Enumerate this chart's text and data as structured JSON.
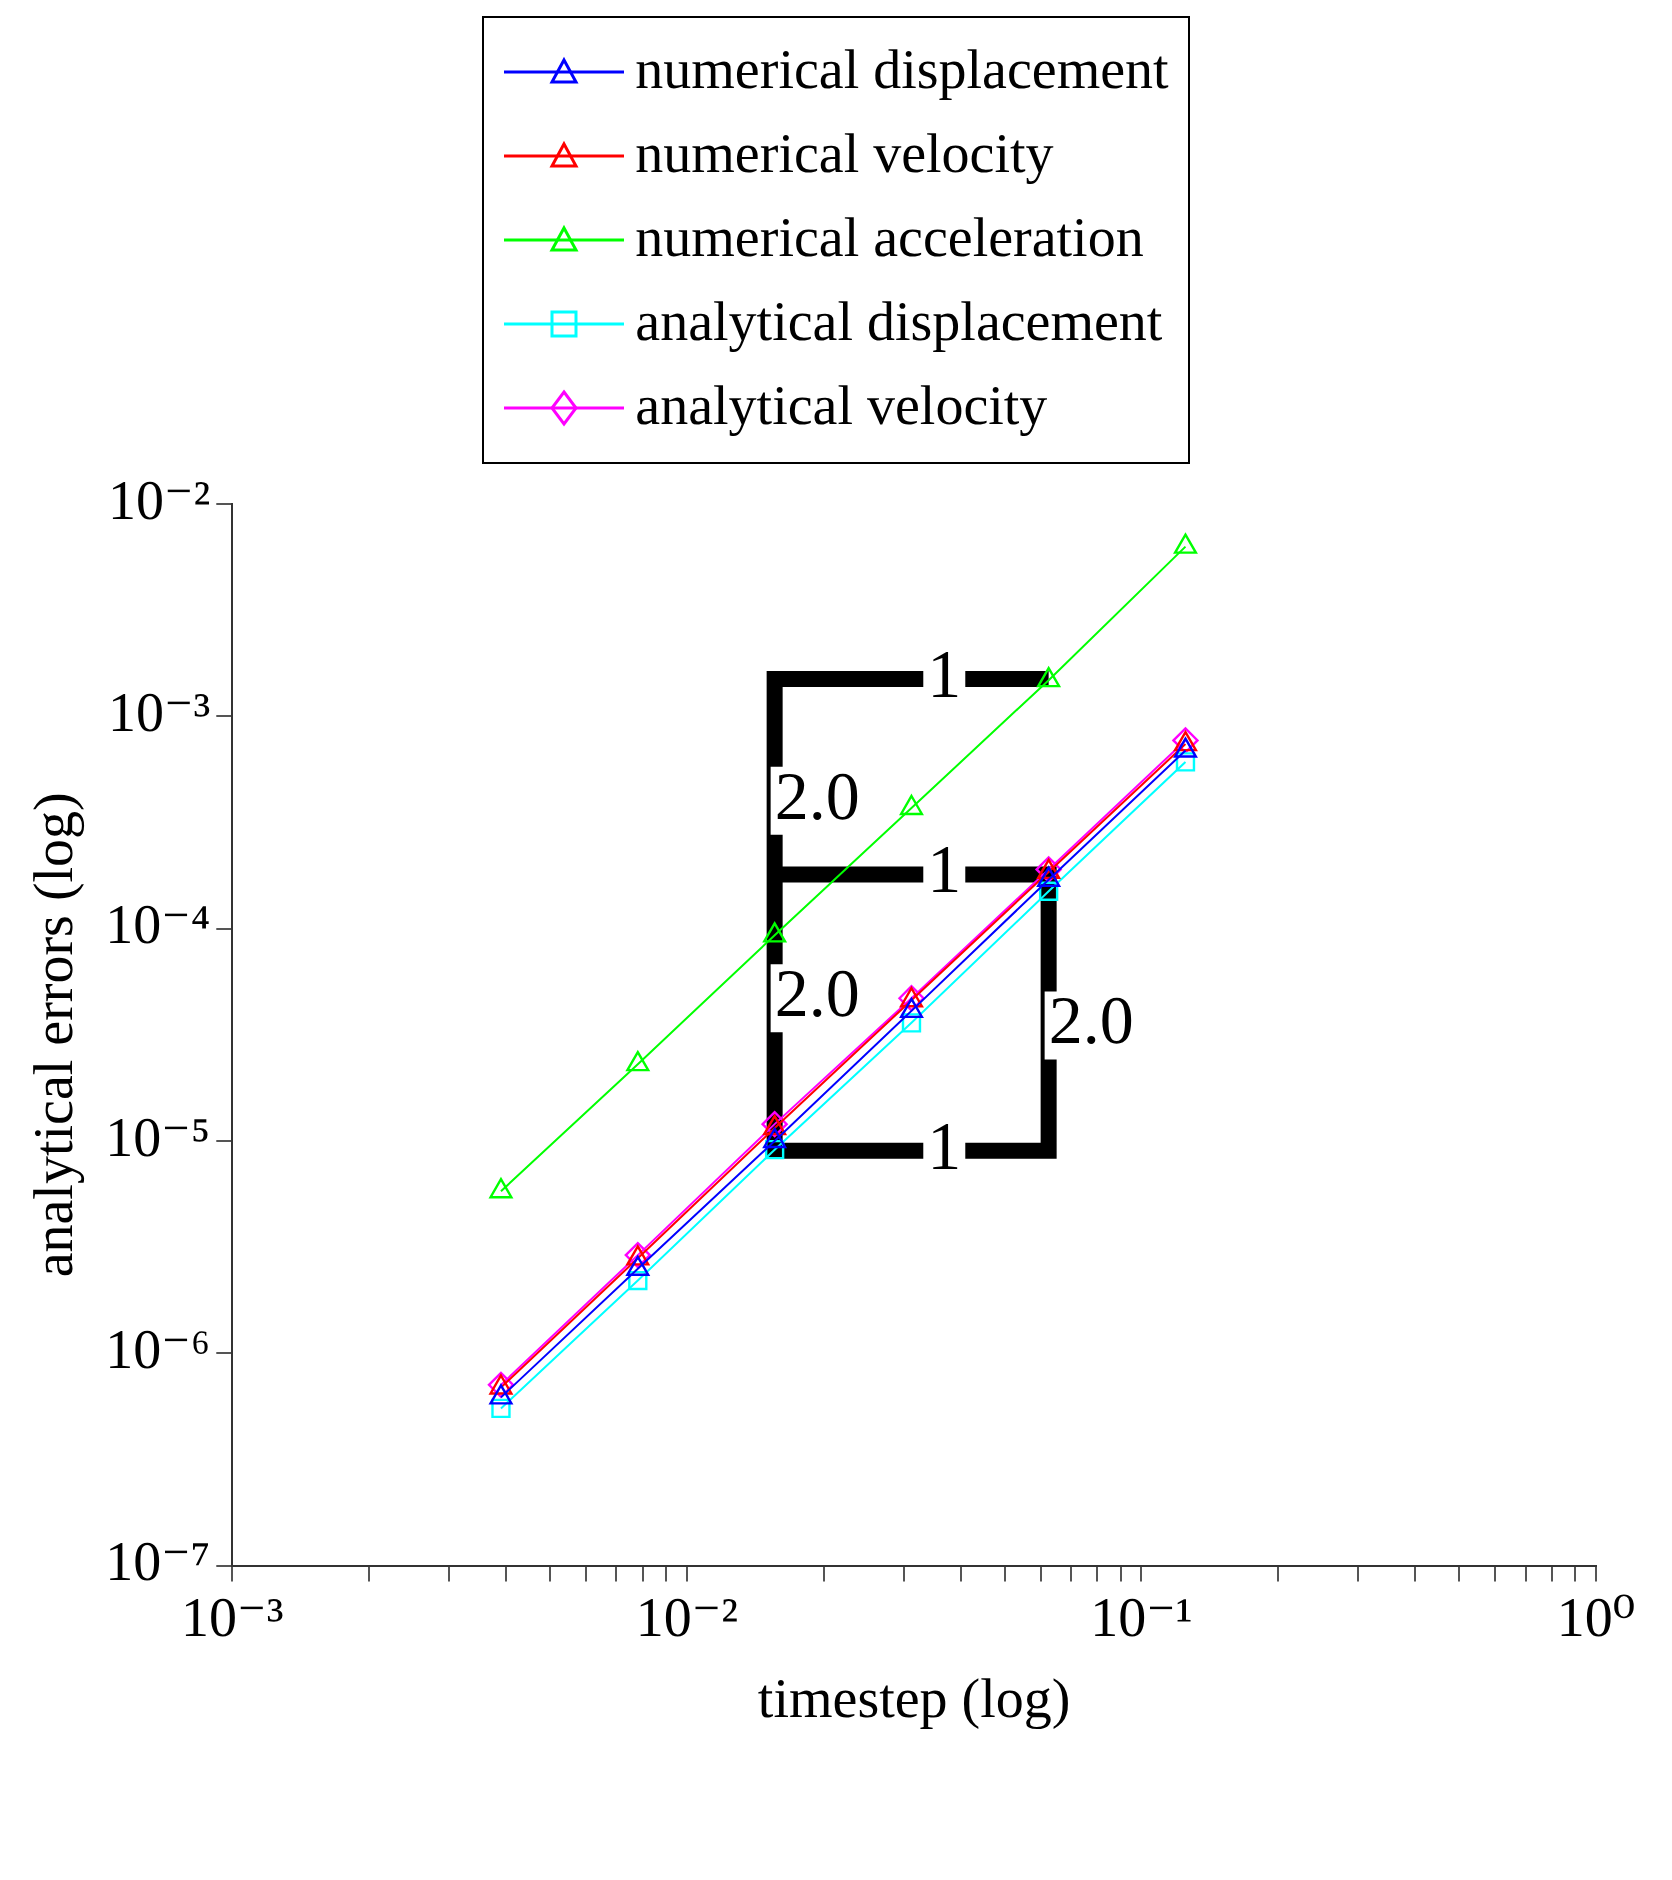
{
  "chart_data": {
    "type": "line",
    "xlabel": "timestep (log)",
    "ylabel": "analytical errors (log)",
    "log": "xy",
    "grid": false,
    "legend": "top",
    "xlim": [
      0.001,
      1
    ],
    "ylim": [
      1e-07,
      0.01
    ],
    "xticks": [
      {
        "value": 0.001,
        "label": "10⁻³"
      },
      {
        "value": 0.002,
        "label": null
      },
      {
        "value": 0.003,
        "label": null
      },
      {
        "value": 0.004,
        "label": null
      },
      {
        "value": 0.005,
        "label": null
      },
      {
        "value": 0.006,
        "label": null
      },
      {
        "value": 0.007,
        "label": null
      },
      {
        "value": 0.008,
        "label": null
      },
      {
        "value": 0.009,
        "label": null
      },
      {
        "value": 0.01,
        "label": "10⁻²"
      },
      {
        "value": 0.02,
        "label": null
      },
      {
        "value": 0.03,
        "label": null
      },
      {
        "value": 0.04,
        "label": null
      },
      {
        "value": 0.05,
        "label": null
      },
      {
        "value": 0.06,
        "label": null
      },
      {
        "value": 0.07,
        "label": null
      },
      {
        "value": 0.08,
        "label": null
      },
      {
        "value": 0.09,
        "label": null
      },
      {
        "value": 0.1,
        "label": "10⁻¹"
      },
      {
        "value": 0.2,
        "label": null
      },
      {
        "value": 0.3,
        "label": null
      },
      {
        "value": 0.4,
        "label": null
      },
      {
        "value": 0.5,
        "label": null
      },
      {
        "value": 0.6,
        "label": null
      },
      {
        "value": 0.7,
        "label": null
      },
      {
        "value": 0.8,
        "label": null
      },
      {
        "value": 0.9,
        "label": null
      },
      {
        "value": 1,
        "label": "10⁰"
      }
    ],
    "yticks": [
      {
        "value": 1e-07,
        "label": "10⁻⁷"
      },
      {
        "value": 1e-06,
        "label": "10⁻⁶"
      },
      {
        "value": 1e-05,
        "label": "10⁻⁵"
      },
      {
        "value": 0.0001,
        "label": "10⁻⁴"
      },
      {
        "value": 0.001,
        "label": "10⁻³"
      },
      {
        "value": 0.01,
        "label": "10⁻²"
      }
    ],
    "series": [
      {
        "name": "numerical displacement",
        "color": "#0000ff",
        "marker": "triangle",
        "x": [
          0.0039,
          0.0078,
          0.0156,
          0.0312,
          0.0625,
          0.125
        ],
        "values": [
          6.2e-07,
          2.5e-06,
          1e-05,
          4.1e-05,
          0.00017,
          0.00069
        ]
      },
      {
        "name": "numerical velocity",
        "color": "#ff0000",
        "marker": "triangle",
        "x": [
          0.0039,
          0.0078,
          0.0156,
          0.0312,
          0.0625,
          0.125
        ],
        "values": [
          6.9e-07,
          2.8e-06,
          1.15e-05,
          4.6e-05,
          0.000185,
          0.00074
        ]
      },
      {
        "name": "numerical acceleration",
        "color": "#00ff00",
        "marker": "triangle",
        "x": [
          0.0039,
          0.0078,
          0.0156,
          0.0312,
          0.0625,
          0.125
        ],
        "values": [
          5.8e-06,
          2.3e-05,
          9.3e-05,
          0.00037,
          0.00148,
          0.0063
        ]
      },
      {
        "name": "analytical displacement",
        "color": "#00ffff",
        "marker": "square",
        "x": [
          0.0039,
          0.0078,
          0.0156,
          0.0312,
          0.0625,
          0.125
        ],
        "values": [
          5.5e-07,
          2.2e-06,
          9.1e-06,
          3.6e-05,
          0.00015,
          0.00061
        ]
      },
      {
        "name": "analytical velocity",
        "color": "#ff00ff",
        "marker": "diamond",
        "x": [
          0.0039,
          0.0078,
          0.0156,
          0.0312,
          0.0625,
          0.125
        ],
        "values": [
          7.1e-07,
          2.9e-06,
          1.2e-05,
          4.7e-05,
          0.00019,
          0.00077
        ]
      },
      {
        "color": "#000000",
        "marker": "none",
        "x": [
          0.0625,
          0.0156,
          0.0156,
          0.0625,
          0.0625,
          0.0156
        ],
        "values": [
          0.0015,
          0.0015,
          9e-06,
          9e-06,
          0.00018,
          0.00018
        ]
      }
    ],
    "annotations": [
      {
        "text": "1",
        "x": 0.0338,
        "y": 0.0015
      },
      {
        "text": "1",
        "x": 0.0338,
        "y": 0.00018
      },
      {
        "text": "1",
        "x": 0.0338,
        "y": 9e-06
      },
      {
        "text": "2.0",
        "x": 0.0156,
        "y": 0.0004
      },
      {
        "text": "2.0",
        "x": 0.0156,
        "y": 4.7e-05
      },
      {
        "text": "2.0",
        "x": 0.0625,
        "y": 3.5e-05
      }
    ]
  }
}
